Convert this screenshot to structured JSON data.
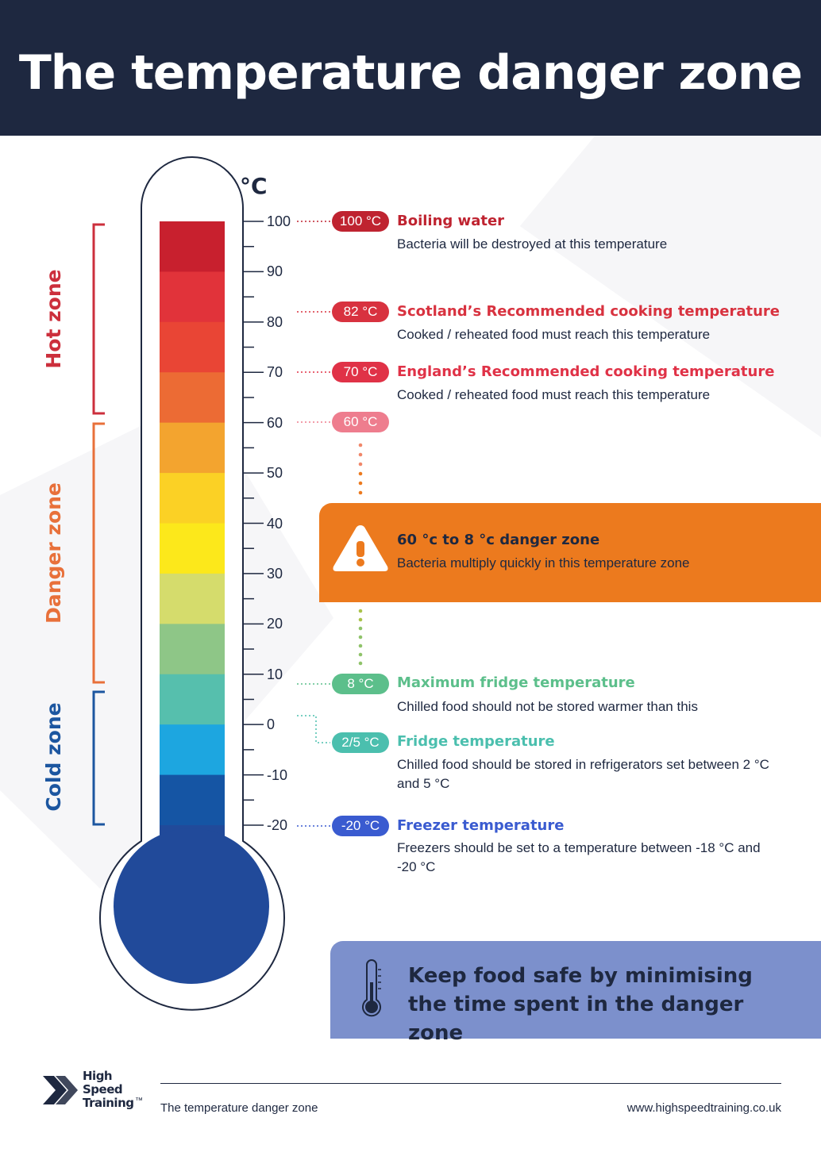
{
  "title": "The temperature danger zone",
  "unit_label": "°C",
  "scale": {
    "ticks": [
      "100",
      "90",
      "80",
      "70",
      "60",
      "50",
      "40",
      "30",
      "20",
      "10",
      "0",
      "-10",
      "-20"
    ],
    "tick_values": [
      100,
      90,
      80,
      70,
      60,
      50,
      40,
      30,
      20,
      10,
      0,
      -10,
      -20
    ]
  },
  "zones": {
    "hot": {
      "label": "Hot zone",
      "color": "#cc2f3c"
    },
    "danger": {
      "label": "Danger zone",
      "color": "#e8703a"
    },
    "cold": {
      "label": "Cold zone",
      "color": "#1c56a0"
    }
  },
  "band_colors": [
    "#c8202e",
    "#e1333a",
    "#e94535",
    "#ec6b34",
    "#f3a42f",
    "#fbd125",
    "#fce81b",
    "#d5dc6c",
    "#8ec687",
    "#56bfad",
    "#1da6e0",
    "#1555a4"
  ],
  "bulb_color": "#214a9a",
  "annotations": [
    {
      "pill": "100 °C",
      "pill_color": "#bf2330",
      "title": "Boiling water",
      "title_color": "#bf2330",
      "desc": "Bacteria will be destroyed at this temperature"
    },
    {
      "pill": "82 °C",
      "pill_color": "#d8323f",
      "title": "Scotland’s Recommended cooking temperature",
      "title_color": "#d8323f",
      "desc": "Cooked / reheated food must reach this temperature"
    },
    {
      "pill": "70 °C",
      "pill_color": "#e03247",
      "title": "England’s Recommended cooking temperature",
      "title_color": "#e03247",
      "desc": "Cooked / reheated food must reach this temperature"
    },
    {
      "pill": "60 °C",
      "pill_color": "#ee7d8e",
      "title": "",
      "title_color": "#ee7d8e",
      "desc": ""
    },
    {
      "pill": "8 °C",
      "pill_color": "#5cbf8b",
      "title": "Maximum fridge temperature",
      "title_color": "#5cbf8b",
      "desc": "Chilled food should not be stored warmer than this"
    },
    {
      "pill": "2/5 °C",
      "pill_color": "#4bbfae",
      "title": "Fridge temperature",
      "title_color": "#4bbfae",
      "desc": "Chilled food should be stored in refrigerators set between 2 °C and 5 °C"
    },
    {
      "pill": "-20 °C",
      "pill_color": "#3a5bd0",
      "title": "Freezer temperature",
      "title_color": "#3a5bd0",
      "desc": "Freezers should be set to a temperature between -18 °C and -20 °C"
    }
  ],
  "danger_zone": {
    "title": "60 °c to 8 °c danger zone",
    "desc": "Bacteria multiply quickly in this temperature zone",
    "icon": "warning-icon",
    "color": "#ec7a1e"
  },
  "keep_safe": {
    "text": "Keep food safe by minimising the time spent in the danger zone",
    "icon": "thermometer-icon"
  },
  "footer": {
    "brand": "High Speed Training",
    "brand_tm": "™",
    "left": "The temperature danger zone",
    "right": "www.highspeedtraining.co.uk"
  }
}
